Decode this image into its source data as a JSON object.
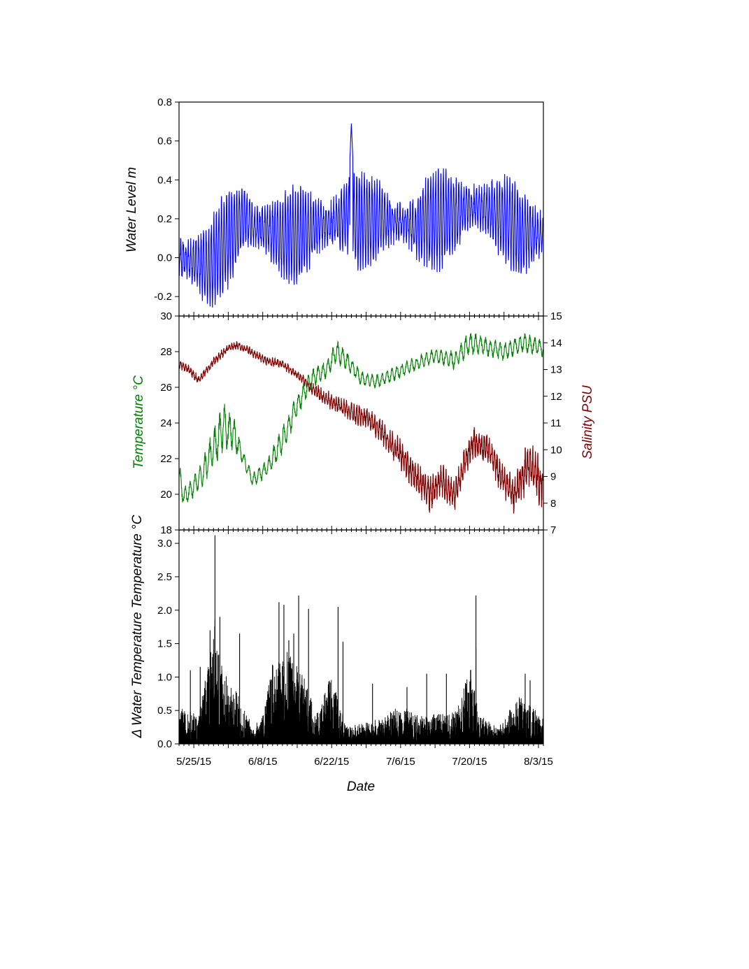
{
  "figure": {
    "xlabel": "Date",
    "x_ticks": [
      "5/25/15",
      "6/8/15",
      "6/22/15",
      "7/6/15",
      "7/20/15",
      "8/3/15"
    ],
    "x_range": [
      "2015-05-22",
      "2015-08-04"
    ]
  },
  "chart_data": [
    {
      "type": "line",
      "panel": "top",
      "ylabel": "Water Level m",
      "ylim": [
        -0.3,
        0.8
      ],
      "y_ticks": [
        "0.8",
        "0.6",
        "0.4",
        "0.2",
        "0.0",
        "-0.2"
      ],
      "series": [
        {
          "color": "#0000ff",
          "x": [
            "2015-05-22",
            "2015-05-25",
            "2015-05-28",
            "2015-06-01",
            "2015-06-04",
            "2015-06-08",
            "2015-06-11",
            "2015-06-15",
            "2015-06-18",
            "2015-06-22",
            "2015-06-25",
            "2015-06-29",
            "2015-07-02",
            "2015-07-06",
            "2015-07-09",
            "2015-07-13",
            "2015-07-17",
            "2015-07-20",
            "2015-07-24",
            "2015-07-27",
            "2015-07-31",
            "2015-08-04"
          ],
          "y_mean": [
            0.0,
            -0.02,
            -0.05,
            0.1,
            0.2,
            0.15,
            0.12,
            0.1,
            0.15,
            0.18,
            0.22,
            0.18,
            0.2,
            0.18,
            0.16,
            0.2,
            0.22,
            0.26,
            0.25,
            0.2,
            0.12,
            0.12
          ],
          "y_amplitude": [
            0.2,
            0.18,
            0.2,
            0.22,
            0.24,
            0.2,
            0.18,
            0.22,
            0.22,
            0.22,
            0.24,
            0.2,
            0.2,
            0.18,
            0.2,
            0.22,
            0.22,
            0.22,
            0.18,
            0.18,
            0.22,
            0.22
          ]
        }
      ],
      "annotations_peak": {
        "x": "2015-06-26",
        "y": 0.69
      }
    },
    {
      "type": "line",
      "panel": "middle",
      "ylabel": "Temperature °C",
      "ylabel_right": "Salinity PSU",
      "ylim": [
        18,
        30
      ],
      "ylim_right": [
        7,
        15
      ],
      "y_ticks": [
        "30",
        "28",
        "26",
        "24",
        "22",
        "20",
        "18"
      ],
      "y_ticks_right": [
        "15",
        "14",
        "13",
        "12",
        "11",
        "10",
        "9",
        "8",
        "7"
      ],
      "series": [
        {
          "color": "#008000",
          "axis": "left",
          "x": [
            "2015-05-22",
            "2015-05-23",
            "2015-05-26",
            "2015-05-29",
            "2015-05-31",
            "2015-06-02",
            "2015-06-04",
            "2015-06-06",
            "2015-06-09",
            "2015-06-12",
            "2015-06-15",
            "2015-06-18",
            "2015-06-21",
            "2015-06-23",
            "2015-06-25",
            "2015-06-28",
            "2015-07-01",
            "2015-07-05",
            "2015-07-09",
            "2015-07-13",
            "2015-07-17",
            "2015-07-20",
            "2015-07-23",
            "2015-07-27",
            "2015-07-31",
            "2015-08-04"
          ],
          "y": [
            21.0,
            19.8,
            20.8,
            22.5,
            23.8,
            23.5,
            22.0,
            20.8,
            21.5,
            23.0,
            25.0,
            26.5,
            27.0,
            28.0,
            27.5,
            26.5,
            26.3,
            26.8,
            27.3,
            27.8,
            27.5,
            28.5,
            28.3,
            28.0,
            28.5,
            28.2
          ],
          "y_amplitude": [
            0.6,
            0.5,
            0.5,
            0.9,
            1.0,
            0.8,
            0.3,
            0.3,
            0.4,
            0.6,
            0.5,
            0.4,
            0.4,
            0.5,
            0.4,
            0.3,
            0.3,
            0.3,
            0.3,
            0.3,
            0.4,
            0.5,
            0.4,
            0.4,
            0.4,
            0.4
          ]
        },
        {
          "color": "#800000",
          "axis": "right",
          "x": [
            "2015-05-22",
            "2015-05-24",
            "2015-05-26",
            "2015-05-29",
            "2015-06-01",
            "2015-06-03",
            "2015-06-06",
            "2015-06-09",
            "2015-06-12",
            "2015-06-15",
            "2015-06-18",
            "2015-06-21",
            "2015-06-24",
            "2015-06-27",
            "2015-06-30",
            "2015-07-03",
            "2015-07-06",
            "2015-07-09",
            "2015-07-12",
            "2015-07-14",
            "2015-07-17",
            "2015-07-19",
            "2015-07-21",
            "2015-07-24",
            "2015-07-26",
            "2015-07-29",
            "2015-08-01",
            "2015-08-04"
          ],
          "y": [
            13.2,
            13.0,
            12.6,
            13.3,
            13.8,
            13.9,
            13.6,
            13.3,
            13.2,
            12.8,
            12.3,
            11.9,
            11.6,
            11.3,
            11.1,
            10.5,
            9.8,
            9.0,
            8.3,
            8.9,
            8.3,
            9.5,
            10.3,
            10.0,
            9.1,
            8.3,
            9.5,
            8.6
          ],
          "y_amplitude": [
            0.1,
            0.1,
            0.1,
            0.1,
            0.1,
            0.1,
            0.1,
            0.1,
            0.1,
            0.1,
            0.15,
            0.2,
            0.2,
            0.25,
            0.25,
            0.3,
            0.35,
            0.35,
            0.4,
            0.4,
            0.35,
            0.35,
            0.35,
            0.35,
            0.35,
            0.4,
            0.6,
            0.5
          ]
        }
      ]
    },
    {
      "type": "line",
      "panel": "bottom",
      "ylabel": "Δ Water Temperature Temperature °C",
      "ylim": [
        0,
        3.2
      ],
      "y_ticks": [
        "3.0",
        "2.5",
        "2.0",
        "1.5",
        "1.0",
        "0.5",
        "0.0"
      ],
      "series": [
        {
          "color": "#000000",
          "x": [
            "2015-05-22",
            "2015-05-26",
            "2015-05-28",
            "2015-05-29",
            "2015-05-30",
            "2015-06-01",
            "2015-06-03",
            "2015-06-06",
            "2015-06-08",
            "2015-06-10",
            "2015-06-12",
            "2015-06-14",
            "2015-06-16",
            "2015-06-19",
            "2015-06-22",
            "2015-06-25",
            "2015-07-01",
            "2015-07-06",
            "2015-07-10",
            "2015-07-14",
            "2015-07-18",
            "2015-07-20",
            "2015-07-22",
            "2015-07-26",
            "2015-07-30",
            "2015-08-04"
          ],
          "y_envelope": [
            0.5,
            0.4,
            1.2,
            2.0,
            1.5,
            0.9,
            0.7,
            0.2,
            0.4,
            1.2,
            1.3,
            1.3,
            1.0,
            0.4,
            1.0,
            0.2,
            0.3,
            0.5,
            0.4,
            0.4,
            0.5,
            1.2,
            0.4,
            0.2,
            0.7,
            0.3
          ]
        }
      ],
      "peaks": [
        {
          "x": "2015-05-29",
          "y": 3.12
        },
        {
          "x": "2015-05-28",
          "y": 1.7
        },
        {
          "x": "2015-05-30",
          "y": 1.9
        },
        {
          "x": "2015-06-03",
          "y": 1.65
        },
        {
          "x": "2015-05-24",
          "y": 1.1
        },
        {
          "x": "2015-05-26",
          "y": 1.15
        },
        {
          "x": "2015-06-11",
          "y": 2.12
        },
        {
          "x": "2015-06-12",
          "y": 2.08
        },
        {
          "x": "2015-06-14",
          "y": 1.65
        },
        {
          "x": "2015-06-15",
          "y": 2.22
        },
        {
          "x": "2015-06-17",
          "y": 2.02
        },
        {
          "x": "2015-06-13",
          "y": 1.55
        },
        {
          "x": "2015-06-23",
          "y": 2.05
        },
        {
          "x": "2015-06-24",
          "y": 1.53
        },
        {
          "x": "2015-07-21",
          "y": 2.22
        },
        {
          "x": "2015-07-21",
          "y": 1.45
        },
        {
          "x": "2015-07-19",
          "y": 0.9
        },
        {
          "x": "2015-07-15",
          "y": 1.05
        },
        {
          "x": "2015-07-11",
          "y": 1.05
        },
        {
          "x": "2015-07-31",
          "y": 1.05
        },
        {
          "x": "2015-08-01",
          "y": 0.95
        },
        {
          "x": "2015-06-30",
          "y": 0.9
        },
        {
          "x": "2015-07-07",
          "y": 0.85
        }
      ]
    }
  ]
}
